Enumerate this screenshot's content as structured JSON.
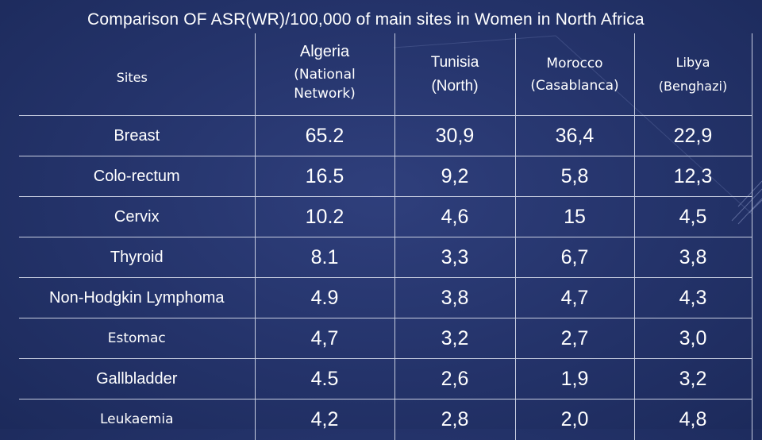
{
  "title": "Comparison OF ASR(WR)/100,000 of main sites in Women in North Africa",
  "table": {
    "sites_header": "Sites",
    "columns": [
      {
        "country": "Algeria",
        "sub_lines": [
          "(National",
          "Network)"
        ]
      },
      {
        "country": "Tunisia",
        "sub_lines": [
          "(North)"
        ]
      },
      {
        "country": "Morocco",
        "sub_lines": [
          "(Casablanca)"
        ]
      },
      {
        "country": "Libya",
        "sub_lines": [
          "(Benghazi)"
        ]
      }
    ],
    "rows": [
      {
        "site": "Breast",
        "values": [
          "65.2",
          "30,9",
          "36,4",
          "22,9"
        ]
      },
      {
        "site": "Colo-rectum",
        "values": [
          "16.5",
          "9,2",
          "5,8",
          "12,3"
        ]
      },
      {
        "site": "Cervix",
        "values": [
          "10.2",
          "4,6",
          "15",
          "4,5"
        ]
      },
      {
        "site": "Thyroid",
        "values": [
          "8.1",
          "3,3",
          "6,7",
          "3,8"
        ]
      },
      {
        "site": "Non-Hodgkin Lymphoma",
        "values": [
          "4.9",
          "3,8",
          "4,7",
          "4,3"
        ]
      },
      {
        "site": "Estomac",
        "values": [
          "4,7",
          "3,2",
          "2,7",
          "3,0"
        ]
      },
      {
        "site": "Gallbladder",
        "values": [
          "4.5",
          "2,6",
          "1,9",
          "3,2"
        ]
      },
      {
        "site": "Leukaemia",
        "values": [
          "4,2",
          "2,8",
          "2,0",
          "4,8"
        ]
      }
    ]
  },
  "colors": {
    "background": "#24336a",
    "border": "#c7cde0",
    "text": "#ffffff"
  }
}
